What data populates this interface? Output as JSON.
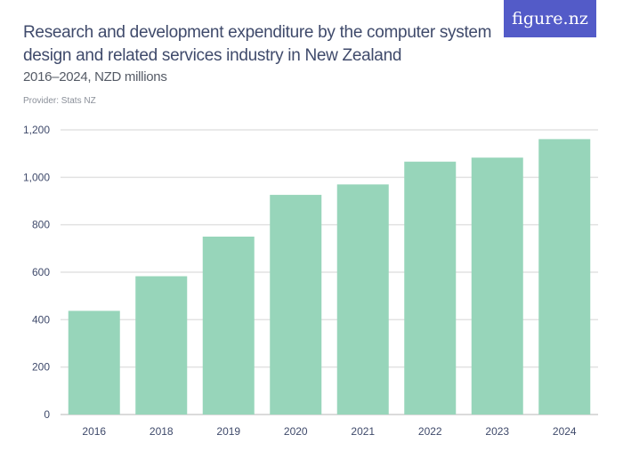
{
  "header": {
    "title": "Research and development expenditure by the computer system design and related services industry in New Zealand",
    "subtitle": "2016–2024, NZD millions",
    "provider": "Provider: Stats NZ",
    "logo": "figure.nz"
  },
  "colors": {
    "bar": "#97d5ba",
    "logo_bg": "#535bc8",
    "text": "#3f4a6b",
    "grid": "#e2e2e2"
  },
  "chart_data": {
    "type": "bar",
    "title": "Research and development expenditure by the computer system design and related services industry in New Zealand",
    "subtitle": "2016–2024, NZD millions",
    "categories": [
      "2016",
      "2018",
      "2019",
      "2020",
      "2021",
      "2022",
      "2023",
      "2024"
    ],
    "values": [
      437,
      583,
      750,
      926,
      970,
      1066,
      1083,
      1161
    ],
    "ylim": [
      0,
      1200
    ],
    "yticks": [
      0,
      200,
      400,
      600,
      800,
      1000,
      1200
    ],
    "ytick_labels": [
      "0",
      "200",
      "400",
      "600",
      "800",
      "1,000",
      "1,200"
    ],
    "grid": true,
    "xlabel": "",
    "ylabel": ""
  }
}
